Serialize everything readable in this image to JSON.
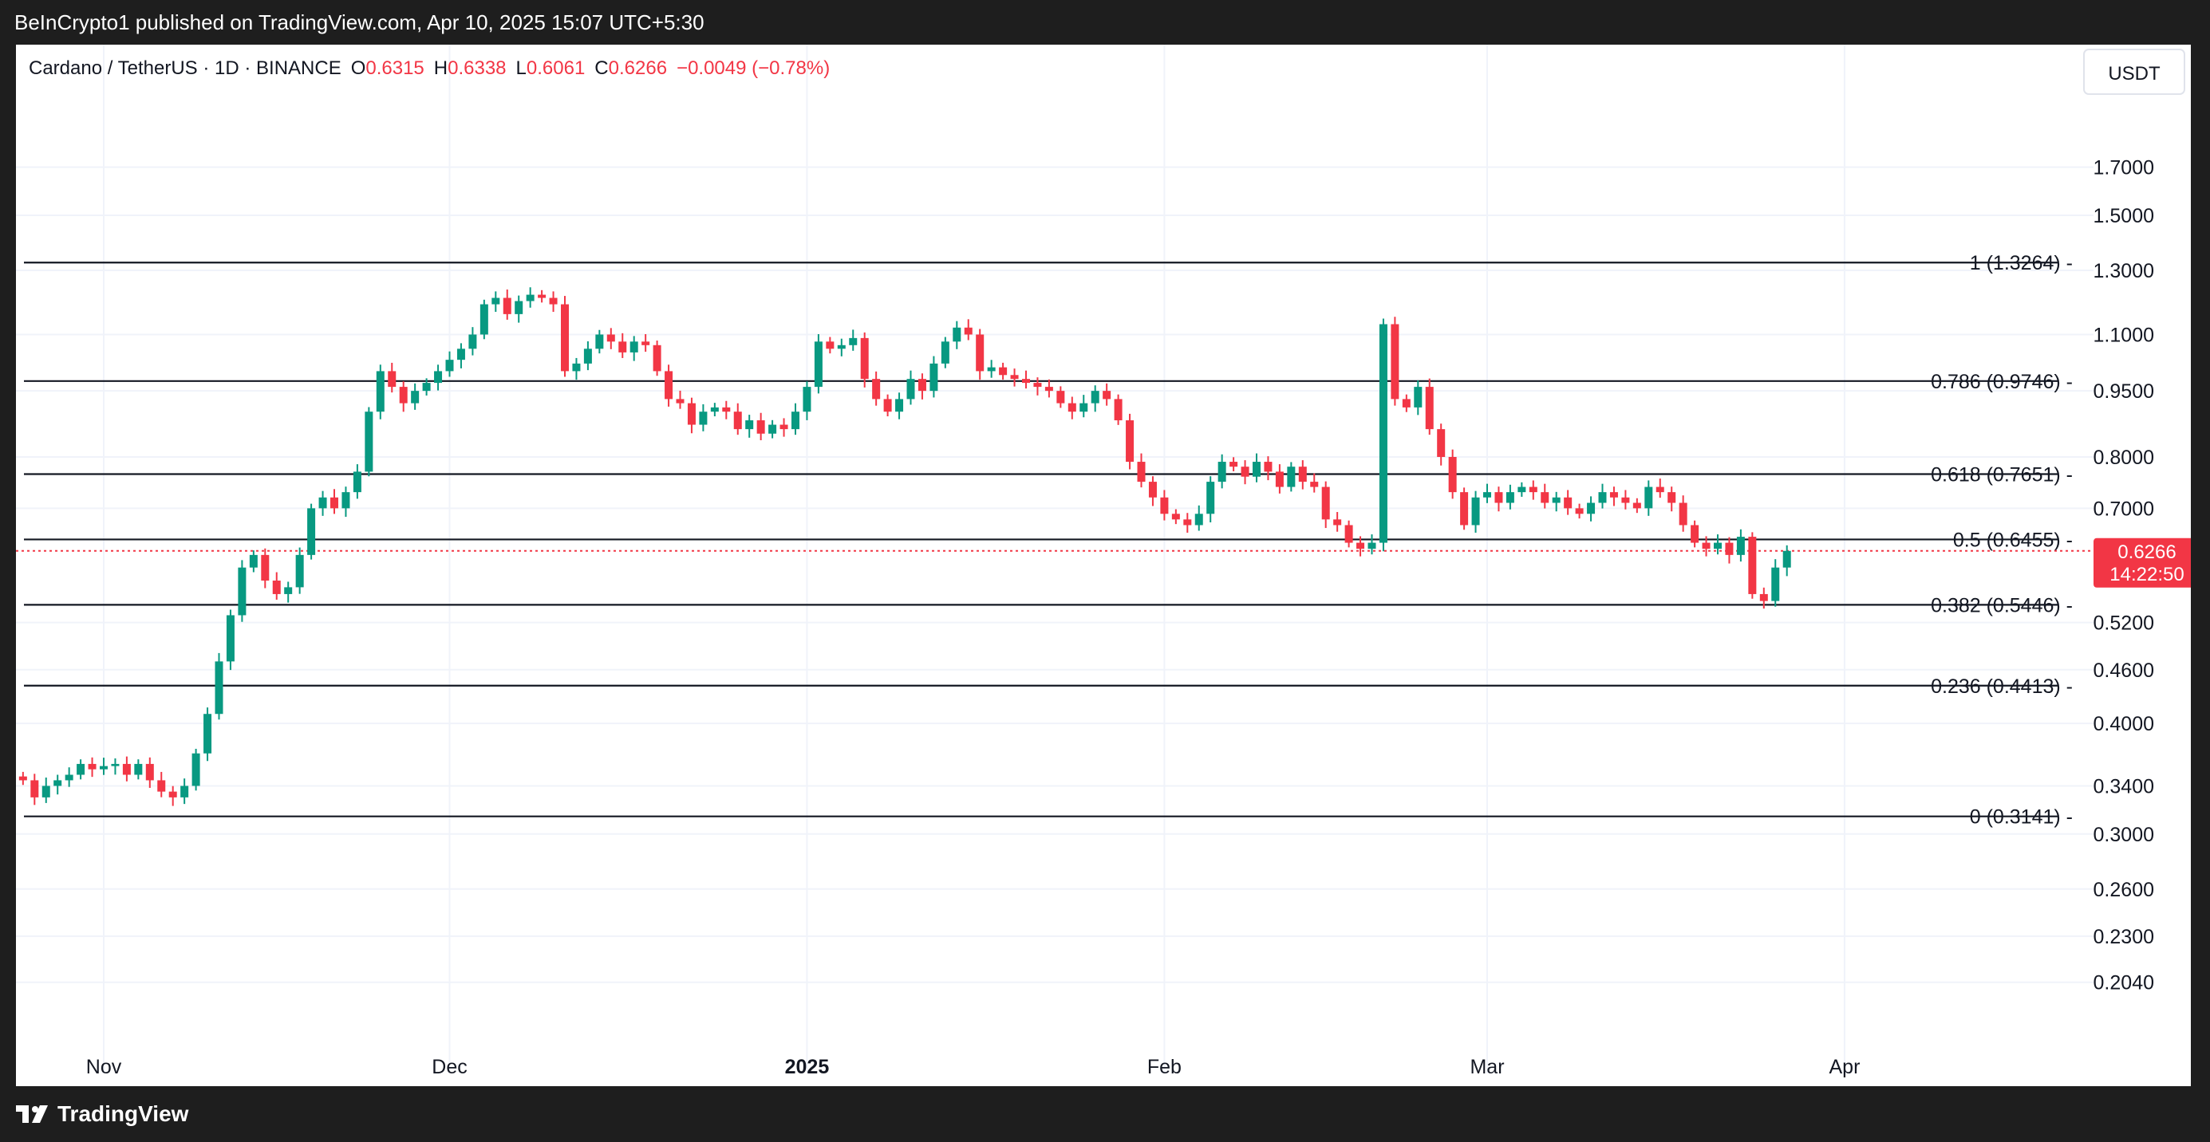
{
  "header": {
    "published_by": "BeInCrypto1 published on TradingView.com, Apr 10, 2025 15:07 UTC+5:30"
  },
  "symbol": {
    "name": "Cardano / TetherUS · 1D · BINANCE",
    "open_label": "O",
    "open": "0.6315",
    "high_label": "H",
    "high": "0.6338",
    "low_label": "L",
    "low": "0.6061",
    "close_label": "C",
    "close": "0.6266",
    "change": "−0.0049 (−0.78%)"
  },
  "currency_button": {
    "label": "USDT"
  },
  "price_axis": {
    "ticks": [
      "1.7000",
      "1.5000",
      "1.3000",
      "1.1000",
      "0.9500",
      "0.8000",
      "0.7000",
      "0.5200",
      "0.4600",
      "0.4000",
      "0.3400",
      "0.3000",
      "0.2600",
      "0.2300",
      "0.2040"
    ],
    "current_price": "0.6266",
    "countdown": "14:22:50"
  },
  "time_axis": {
    "labels": [
      "Nov",
      "Dec",
      "2025",
      "Feb",
      "Mar",
      "Apr"
    ]
  },
  "fib_levels": [
    {
      "label": "1 (1.3264)",
      "value": 1.3264
    },
    {
      "label": "0.786 (0.9746)",
      "value": 0.9746
    },
    {
      "label": "0.618 (0.7651)",
      "value": 0.7651
    },
    {
      "label": "0.5 (0.6455)",
      "value": 0.6455
    },
    {
      "label": "0.382 (0.5446)",
      "value": 0.5446
    },
    {
      "label": "0.236 (0.4413)",
      "value": 0.4413
    },
    {
      "label": "0 (0.3141)",
      "value": 0.3141
    }
  ],
  "colors": {
    "up": "#089981",
    "down": "#f23645",
    "text": "#131722",
    "grid": "#f0f3fa",
    "frame": "#1e1e1e"
  },
  "footer": {
    "brand": "TradingView",
    "logo_icon": "tradingview-logo-icon"
  },
  "chart_data": {
    "type": "candlestick",
    "y_scale": "log",
    "y_range": [
      0.19,
      1.9
    ],
    "month_starts": {
      "Nov": 0,
      "Dec": 30,
      "2025": 61,
      "Feb": 92,
      "Mar": 120,
      "Apr": 151
    },
    "start_index": -7,
    "closes": [
      0.345,
      0.33,
      0.34,
      0.345,
      0.35,
      0.36,
      0.355,
      0.358,
      0.36,
      0.35,
      0.36,
      0.345,
      0.335,
      0.33,
      0.34,
      0.37,
      0.41,
      0.47,
      0.53,
      0.6,
      0.62,
      0.58,
      0.56,
      0.57,
      0.62,
      0.7,
      0.72,
      0.7,
      0.73,
      0.77,
      0.9,
      1.0,
      0.96,
      0.92,
      0.95,
      0.97,
      1.0,
      1.03,
      1.06,
      1.1,
      1.19,
      1.21,
      1.16,
      1.2,
      1.22,
      1.21,
      1.19,
      1.0,
      1.02,
      1.06,
      1.1,
      1.08,
      1.05,
      1.08,
      1.07,
      1.0,
      0.93,
      0.92,
      0.87,
      0.9,
      0.91,
      0.9,
      0.86,
      0.88,
      0.85,
      0.87,
      0.86,
      0.9,
      0.96,
      1.08,
      1.06,
      1.07,
      1.09,
      0.98,
      0.93,
      0.9,
      0.93,
      0.98,
      0.95,
      1.02,
      1.08,
      1.12,
      1.1,
      1.0,
      1.01,
      0.99,
      0.98,
      0.97,
      0.96,
      0.95,
      0.92,
      0.9,
      0.92,
      0.95,
      0.93,
      0.88,
      0.79,
      0.75,
      0.72,
      0.69,
      0.68,
      0.67,
      0.69,
      0.75,
      0.79,
      0.78,
      0.76,
      0.79,
      0.77,
      0.74,
      0.78,
      0.75,
      0.74,
      0.68,
      0.67,
      0.64,
      0.63,
      0.64,
      1.13,
      0.93,
      0.91,
      0.96,
      0.86,
      0.8,
      0.73,
      0.67,
      0.72,
      0.73,
      0.71,
      0.73,
      0.74,
      0.73,
      0.71,
      0.72,
      0.7,
      0.69,
      0.71,
      0.73,
      0.72,
      0.71,
      0.7,
      0.74,
      0.73,
      0.71,
      0.67,
      0.64,
      0.63,
      0.64,
      0.62,
      0.65,
      0.56,
      0.55,
      0.6,
      0.6266
    ]
  }
}
